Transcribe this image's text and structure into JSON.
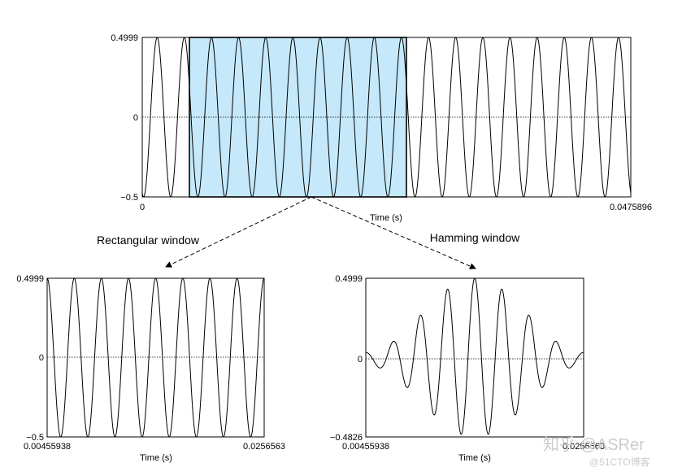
{
  "top_plot": {
    "y_labels": [
      "0.4999",
      "0",
      "−0.5"
    ],
    "x_labels": [
      "0",
      "0.0475896"
    ],
    "x_axis_label": "Time (s)"
  },
  "annotations": {
    "left": "Rectangular window",
    "right": "Hamming window"
  },
  "left_plot": {
    "y_labels": [
      "0.4999",
      "0",
      "−0.5"
    ],
    "x_labels": [
      "0.00455938",
      "0.0256563"
    ],
    "x_axis_label": "Time (s)"
  },
  "right_plot": {
    "y_labels": [
      "0.4999",
      "0",
      "−0.4826"
    ],
    "x_labels": [
      "0.00455938",
      "0.0256563"
    ],
    "x_axis_label": "Time (s)"
  },
  "watermark": {
    "main": "知乎 @ASRer",
    "sub": "@51CTO博客"
  }
}
